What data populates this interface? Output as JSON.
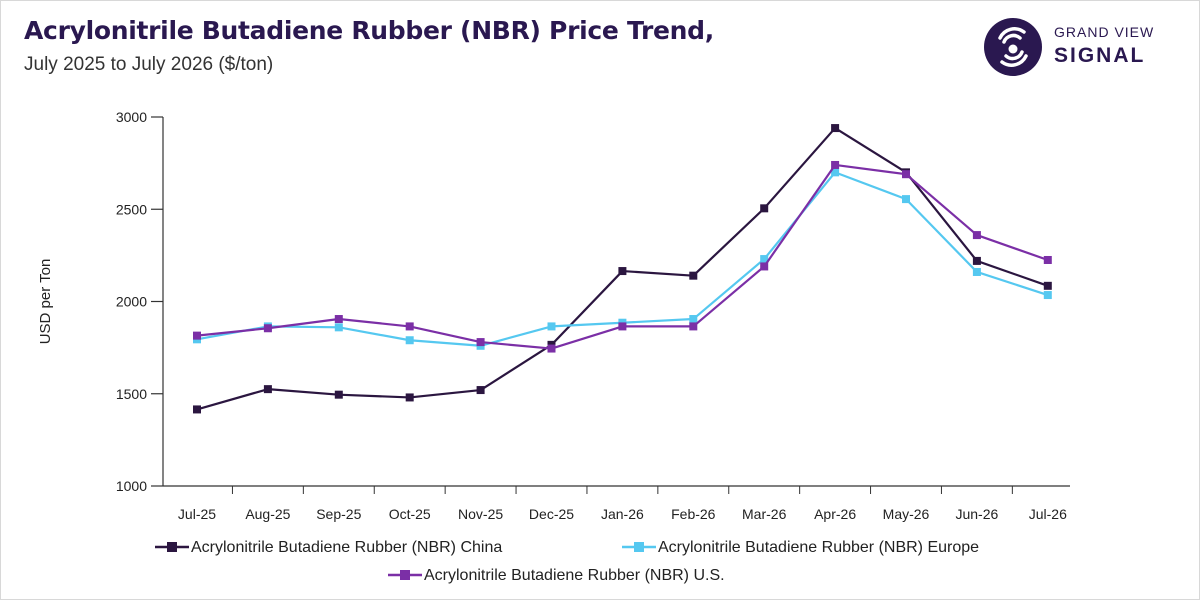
{
  "header": {
    "title": "Acrylonitrile Butadiene Rubber (NBR) Price Trend,",
    "subtitle": "July 2025 to July 2026 ($/ton)"
  },
  "brand": {
    "line1": "GRAND VIEW",
    "line2": "SIGNAL",
    "icon": "radar-signal-icon",
    "color": "#2a1850"
  },
  "chart_data": {
    "type": "line",
    "title": "Acrylonitrile Butadiene Rubber (NBR) Price Trend,",
    "subtitle": "July 2025 to July 2026 ($/ton)",
    "xlabel": "",
    "ylabel": "USD per Ton",
    "ylim": [
      1000,
      3000
    ],
    "yticks": [
      "1000",
      "1500",
      "2000",
      "2500",
      "3000"
    ],
    "grid": false,
    "legend_position": "bottom",
    "categories": [
      "Jul-25",
      "Aug-25",
      "Sep-25",
      "Oct-25",
      "Nov-25",
      "Dec-25",
      "Jan-26",
      "Feb-26",
      "Mar-26",
      "Apr-26",
      "May-26",
      "Jun-26",
      "Jul-26"
    ],
    "series": [
      {
        "name": "Acrylonitrile Butadiene Rubber (NBR) China",
        "color": "#2b1640",
        "values": [
          1415,
          1525,
          1495,
          1480,
          1520,
          1765,
          2165,
          2140,
          2505,
          2940,
          2700,
          2220,
          2085
        ]
      },
      {
        "name": "Acrylonitrile Butadiene Rubber (NBR) Europe",
        "color": "#55c8f0",
        "values": [
          1795,
          1865,
          1860,
          1790,
          1760,
          1865,
          1885,
          1905,
          2230,
          2700,
          2555,
          2160,
          2035
        ]
      },
      {
        "name": "Acrylonitrile Butadiene Rubber (NBR) U.S.",
        "color": "#7b2fa6",
        "values": [
          1815,
          1855,
          1905,
          1865,
          1780,
          1745,
          1865,
          1865,
          2190,
          2740,
          2690,
          2360,
          2225
        ]
      }
    ]
  }
}
